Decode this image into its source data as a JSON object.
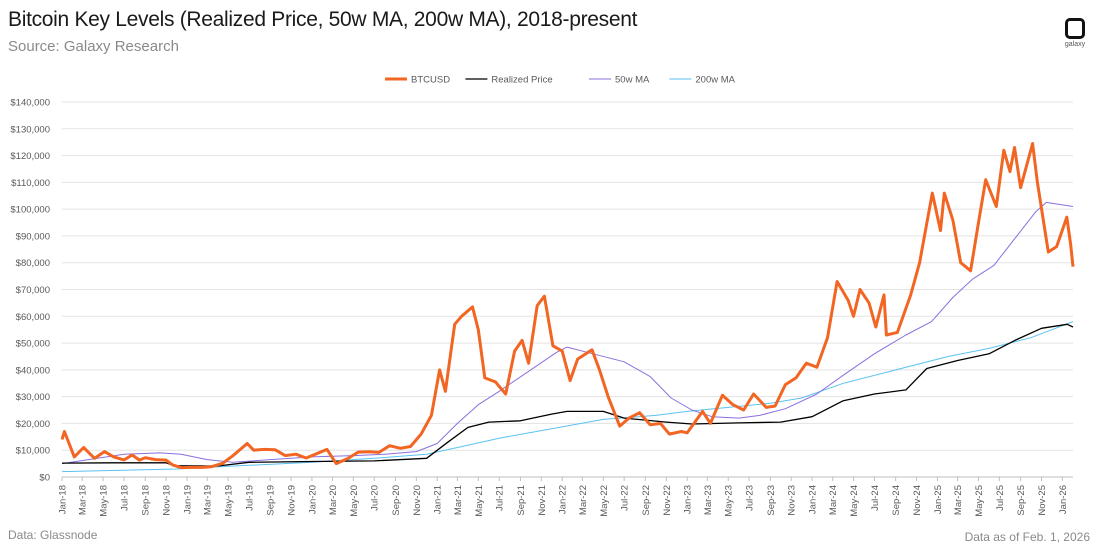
{
  "header": {
    "title": "Bitcoin Key Levels (Realized Price, 50w MA, 200w MA), 2018-present",
    "subtitle": "Source: Galaxy Research",
    "logo_text": "galaxy"
  },
  "footer": {
    "source": "Data: Glassnode",
    "as_of": "Data as of Feb. 1, 2026"
  },
  "chart_data": {
    "type": "line",
    "title": "Bitcoin Key Levels (Realized Price, 50w MA, 200w MA), 2018-present",
    "legend_position": "top",
    "grid": true,
    "ylim": [
      0,
      140000
    ],
    "xlim": [
      "2018-01-01",
      "2026-02-01"
    ],
    "y_ticks": [
      "$0",
      "$10,000",
      "$20,000",
      "$30,000",
      "$40,000",
      "$50,000",
      "$60,000",
      "$70,000",
      "$80,000",
      "$90,000",
      "$100,000",
      "$110,000",
      "$120,000",
      "$130,000",
      "$140,000"
    ],
    "x_ticks": [
      "Jan-18",
      "Mar-18",
      "May-18",
      "Jul-18",
      "Sep-18",
      "Nov-18",
      "Jan-19",
      "Mar-19",
      "May-19",
      "Jul-19",
      "Sep-19",
      "Nov-19",
      "Jan-20",
      "Mar-20",
      "May-20",
      "Jul-20",
      "Sep-20",
      "Nov-20",
      "Jan-21",
      "Mar-21",
      "May-21",
      "Jul-21",
      "Sep-21",
      "Nov-21",
      "Jan-22",
      "Mar-22",
      "May-22",
      "Jul-22",
      "Sep-22",
      "Nov-22",
      "Jan-23",
      "Mar-23",
      "May-23",
      "Jul-23",
      "Sep-23",
      "Nov-23",
      "Jan-24",
      "Mar-24",
      "May-24",
      "Jul-24",
      "Sep-24",
      "Nov-24",
      "Jan-25",
      "Mar-25",
      "May-25",
      "Jul-25",
      "Sep-25",
      "Nov-25",
      "Jan-26"
    ],
    "series": [
      {
        "name": "BTCUSD",
        "color": "#F26522",
        "width": 3,
        "x": [
          "2018-01-01",
          "2018-01-08",
          "2018-02-06",
          "2018-03-05",
          "2018-04-06",
          "2018-05-05",
          "2018-06-01",
          "2018-07-01",
          "2018-07-25",
          "2018-08-15",
          "2018-09-01",
          "2018-10-01",
          "2018-11-01",
          "2018-11-20",
          "2018-12-15",
          "2019-01-15",
          "2019-02-15",
          "2019-03-15",
          "2019-04-15",
          "2019-05-15",
          "2019-06-26",
          "2019-07-15",
          "2019-08-15",
          "2019-09-15",
          "2019-10-15",
          "2019-11-15",
          "2019-12-15",
          "2020-01-15",
          "2020-02-14",
          "2020-03-12",
          "2020-04-15",
          "2020-05-15",
          "2020-06-15",
          "2020-07-15",
          "2020-08-15",
          "2020-09-15",
          "2020-10-15",
          "2020-11-15",
          "2020-12-15",
          "2021-01-08",
          "2021-01-25",
          "2021-02-21",
          "2021-03-13",
          "2021-04-14",
          "2021-05-01",
          "2021-05-20",
          "2021-06-20",
          "2021-07-20",
          "2021-08-15",
          "2021-09-06",
          "2021-09-25",
          "2021-10-20",
          "2021-11-10",
          "2021-12-05",
          "2022-01-01",
          "2022-01-24",
          "2022-02-15",
          "2022-03-29",
          "2022-04-20",
          "2022-05-15",
          "2022-06-18",
          "2022-07-15",
          "2022-08-15",
          "2022-09-15",
          "2022-10-15",
          "2022-11-10",
          "2022-12-15",
          "2023-01-01",
          "2023-02-15",
          "2023-03-10",
          "2023-04-14",
          "2023-05-15",
          "2023-06-15",
          "2023-07-14",
          "2023-08-20",
          "2023-09-15",
          "2023-10-15",
          "2023-11-15",
          "2023-12-15",
          "2024-01-15",
          "2024-02-15",
          "2024-03-14",
          "2024-04-15",
          "2024-05-01",
          "2024-05-20",
          "2024-06-15",
          "2024-07-05",
          "2024-07-29",
          "2024-08-05",
          "2024-09-06",
          "2024-10-15",
          "2024-11-10",
          "2024-12-17",
          "2025-01-10",
          "2025-01-21",
          "2025-02-15",
          "2025-03-10",
          "2025-04-08",
          "2025-05-01",
          "2025-05-22",
          "2025-06-22",
          "2025-07-14",
          "2025-08-01",
          "2025-08-14",
          "2025-09-01",
          "2025-10-06",
          "2025-10-20",
          "2025-11-21",
          "2025-12-15",
          "2026-01-14",
          "2026-01-25",
          "2026-02-01"
        ],
        "y": [
          14000,
          17000,
          7500,
          11000,
          7000,
          9500,
          7500,
          6400,
          8200,
          6300,
          7200,
          6500,
          6300,
          4500,
          3500,
          3600,
          3600,
          3900,
          5100,
          7900,
          12500,
          10000,
          10300,
          10200,
          8000,
          8500,
          7100,
          8700,
          10300,
          5000,
          6900,
          9300,
          9400,
          9200,
          11700,
          10700,
          11400,
          16000,
          23000,
          40000,
          32000,
          57000,
          60000,
          63500,
          55000,
          37000,
          35500,
          31000,
          47000,
          51000,
          42500,
          64000,
          67500,
          49000,
          47000,
          36000,
          44000,
          47500,
          40000,
          30000,
          19000,
          22000,
          24000,
          19500,
          20000,
          16000,
          17000,
          16500,
          24500,
          20000,
          30500,
          27000,
          25000,
          31000,
          26000,
          26500,
          34500,
          37000,
          42500,
          41000,
          52000,
          73000,
          66000,
          60000,
          70000,
          65000,
          56000,
          68000,
          53000,
          54000,
          68000,
          80000,
          106000,
          92000,
          106000,
          96000,
          80000,
          77000,
          95000,
          111000,
          101000,
          122000,
          114000,
          123000,
          108000,
          124500,
          110000,
          84000,
          86000,
          97000,
          87000,
          78500
        ]
      },
      {
        "name": "Realized Price",
        "color": "#000000",
        "width": 1.3,
        "x": [
          "2018-01-01",
          "2018-06-01",
          "2018-11-01",
          "2018-11-25",
          "2019-04-01",
          "2019-07-01",
          "2020-01-01",
          "2020-07-01",
          "2020-12-01",
          "2021-02-01",
          "2021-04-01",
          "2021-06-01",
          "2021-09-01",
          "2021-12-01",
          "2022-01-15",
          "2022-05-01",
          "2022-07-01",
          "2022-11-01",
          "2023-01-15",
          "2023-06-01",
          "2023-10-01",
          "2024-01-01",
          "2024-04-01",
          "2024-07-01",
          "2024-10-01",
          "2024-12-01",
          "2025-03-01",
          "2025-06-01",
          "2025-08-15",
          "2025-11-01",
          "2026-01-15",
          "2026-02-01"
        ],
        "y": [
          5200,
          5300,
          5300,
          4200,
          4100,
          5500,
          5800,
          6000,
          7000,
          13000,
          18500,
          20500,
          21000,
          23500,
          24500,
          24500,
          22000,
          20500,
          19800,
          20200,
          20500,
          22500,
          28500,
          31000,
          32500,
          40500,
          43500,
          46000,
          51000,
          55500,
          57000,
          56000
        ]
      },
      {
        "name": "50w MA",
        "color": "#8B6FE0",
        "width": 1,
        "x": [
          "2018-01-01",
          "2018-07-01",
          "2018-10-15",
          "2018-12-15",
          "2019-03-01",
          "2019-05-15",
          "2019-09-01",
          "2020-01-01",
          "2020-05-01",
          "2020-08-01",
          "2020-11-01",
          "2021-01-01",
          "2021-03-01",
          "2021-05-01",
          "2021-07-01",
          "2021-10-01",
          "2021-12-15",
          "2022-01-15",
          "2022-04-01",
          "2022-07-01",
          "2022-09-15",
          "2022-11-15",
          "2023-01-15",
          "2023-03-15",
          "2023-06-01",
          "2023-08-01",
          "2023-10-15",
          "2024-01-15",
          "2024-04-01",
          "2024-07-01",
          "2024-10-01",
          "2024-12-15",
          "2025-02-15",
          "2025-04-15",
          "2025-06-15",
          "2025-08-15",
          "2025-10-15",
          "2025-11-15",
          "2026-02-01"
        ],
        "y": [
          5000,
          8500,
          9000,
          8500,
          6500,
          5500,
          6500,
          7500,
          8000,
          8500,
          9500,
          12500,
          20000,
          27000,
          32000,
          40000,
          46500,
          48500,
          46000,
          43000,
          37500,
          29500,
          25000,
          22500,
          22000,
          23000,
          25500,
          31000,
          38000,
          46000,
          53000,
          58000,
          67000,
          74000,
          79000,
          89000,
          99000,
          102500,
          101000
        ]
      },
      {
        "name": "200w MA",
        "color": "#5BC2F0",
        "width": 1,
        "x": [
          "2018-01-01",
          "2018-12-01",
          "2019-06-01",
          "2020-01-01",
          "2020-07-01",
          "2020-12-01",
          "2021-03-01",
          "2021-07-01",
          "2021-12-01",
          "2022-05-01",
          "2022-10-01",
          "2023-01-01",
          "2023-05-01",
          "2023-09-01",
          "2023-12-01",
          "2024-04-01",
          "2024-09-01",
          "2025-02-01",
          "2025-06-01",
          "2025-10-01",
          "2026-01-01",
          "2026-02-01"
        ],
        "y": [
          2000,
          3000,
          4200,
          5500,
          7000,
          8500,
          11000,
          14500,
          18000,
          21500,
          23000,
          24500,
          26000,
          27500,
          29500,
          35000,
          40000,
          45000,
          48000,
          52000,
          56500,
          58000
        ]
      }
    ]
  }
}
